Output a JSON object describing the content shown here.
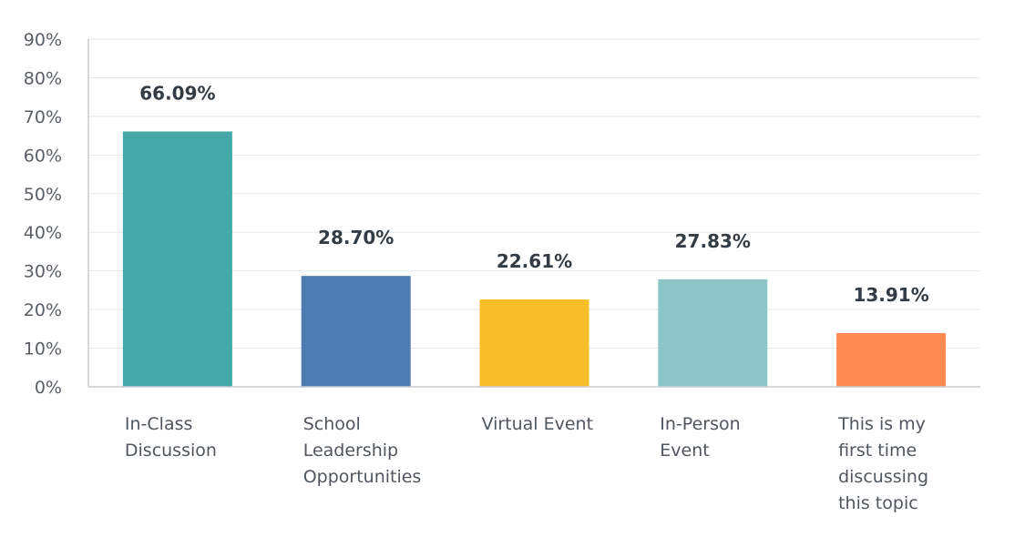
{
  "chart_data": {
    "type": "bar",
    "title": "",
    "xlabel": "",
    "ylabel": "",
    "ylim": [
      0,
      90
    ],
    "yticks": [
      0,
      10,
      20,
      30,
      40,
      50,
      60,
      70,
      80,
      90
    ],
    "ytick_labels": [
      "0%",
      "10%",
      "20%",
      "30%",
      "40%",
      "50%",
      "60%",
      "70%",
      "80%",
      "90%"
    ],
    "grid": true,
    "categories": [
      [
        "In-Class",
        "Discussion"
      ],
      [
        "School",
        "Leadership",
        "Opportunities"
      ],
      [
        "Virtual Event"
      ],
      [
        "In-Person",
        "Event"
      ],
      [
        "This is my",
        "first time",
        "discussing",
        "this topic"
      ]
    ],
    "values": [
      66.09,
      28.7,
      22.61,
      27.83,
      13.91
    ],
    "value_labels": [
      "66.09%",
      "28.70%",
      "22.61%",
      "27.83%",
      "13.91%"
    ],
    "colors": [
      "#43a8a6",
      "#4f7bb3",
      "#f8be2a",
      "#8dc6c6",
      "#ff8b52"
    ]
  }
}
